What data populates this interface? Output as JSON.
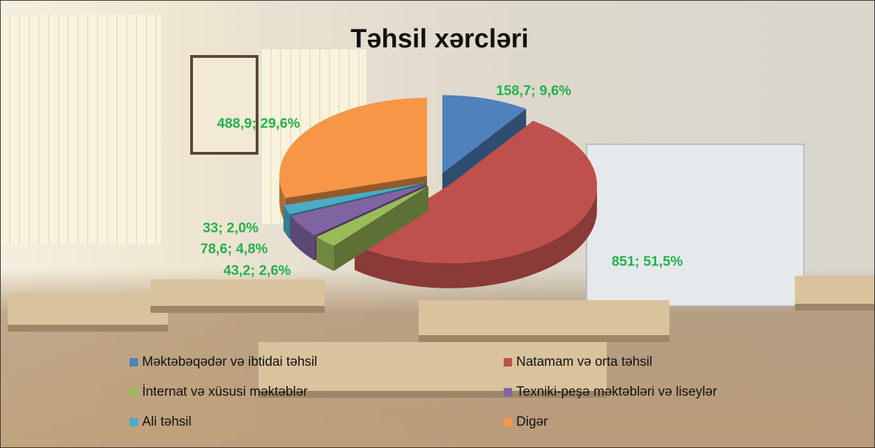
{
  "chart_data": {
    "type": "pie3d",
    "title": "Təhsil xərcləri",
    "categories": [
      "Məktəbəqədər və ibtidai təhsil",
      "Natamam və orta təhsil",
      "İnternat və xüsusi məktəblər",
      "Texniki-peşə məktəbləri və liseylər",
      "Ali təhsil",
      "Digər"
    ],
    "values": [
      158.7,
      851,
      43.2,
      78.6,
      33,
      488.9
    ],
    "value_labels": [
      "158,7; 9,6%",
      "851; 51,5%",
      "43,2; 2,6%",
      "78,6; 4,8%",
      "33; 2,0%",
      "488,9; 29,6%"
    ],
    "colors": [
      "#4f81bd",
      "#c0504d",
      "#9bbb59",
      "#8064a2",
      "#4bacc6",
      "#f79646"
    ],
    "legend": "bottom"
  }
}
